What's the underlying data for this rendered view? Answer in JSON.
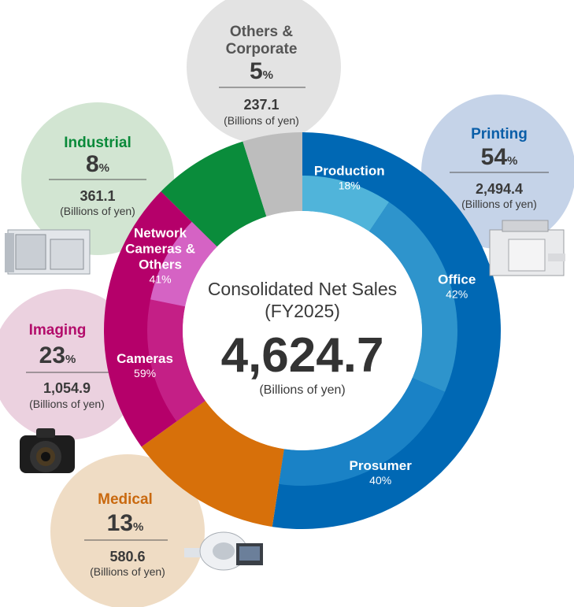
{
  "chart_data": {
    "type": "pie",
    "center": {
      "title_line1": "Consolidated Net Sales",
      "title_line2": "(FY2025)",
      "total": "4,624.7",
      "unit": "(Billions of yen)"
    },
    "unit_label": "(Billions of yen)",
    "segments": [
      {
        "name": "Printing",
        "share_pct": 54,
        "value": 2494.4,
        "value_label": "2,494.4",
        "color": "#0068b4",
        "inner_color": "#2e8fca",
        "bubble_color": "#c5d3e8",
        "title_color": "#0a5ea8",
        "sub": [
          {
            "name_lines": [
              "Production"
            ],
            "share_pct": 18,
            "color": "#50b4da"
          },
          {
            "name_lines": [
              "Office"
            ],
            "share_pct": 42,
            "color": "#2e94cc"
          },
          {
            "name_lines": [
              "Prosumer"
            ],
            "share_pct": 40,
            "color": "#1a82c6"
          }
        ]
      },
      {
        "name": "Medical",
        "share_pct": 13,
        "value": 580.6,
        "value_label": "580.6",
        "color": "#d7700a",
        "bubble_color": "#efdcc4",
        "title_color": "#c9690f",
        "sub": []
      },
      {
        "name": "Imaging",
        "share_pct": 23,
        "value": 1054.9,
        "value_label": "1,054.9",
        "color": "#b5006a",
        "bubble_color": "#ebd1df",
        "title_color": "#b30d6b",
        "sub": [
          {
            "name_lines": [
              "Cameras"
            ],
            "share_pct": 59,
            "color": "#c41f86"
          },
          {
            "name_lines": [
              "Network",
              "Cameras &",
              "Others"
            ],
            "share_pct": 41,
            "color": "#d563c4"
          }
        ]
      },
      {
        "name": "Industrial",
        "share_pct": 8,
        "value": 361.1,
        "value_label": "361.1",
        "color": "#0a8c3b",
        "bubble_color": "#d2e5d2",
        "title_color": "#0a8a3a",
        "sub": []
      },
      {
        "name": "Others & Corporate",
        "title_lines": [
          "Others &",
          "Corporate"
        ],
        "share_pct": 5,
        "value": 237.1,
        "value_label": "237.1",
        "color": "#bdbdbd",
        "bubble_color": "#e3e3e3",
        "title_color": "#555555",
        "sub": []
      }
    ]
  }
}
